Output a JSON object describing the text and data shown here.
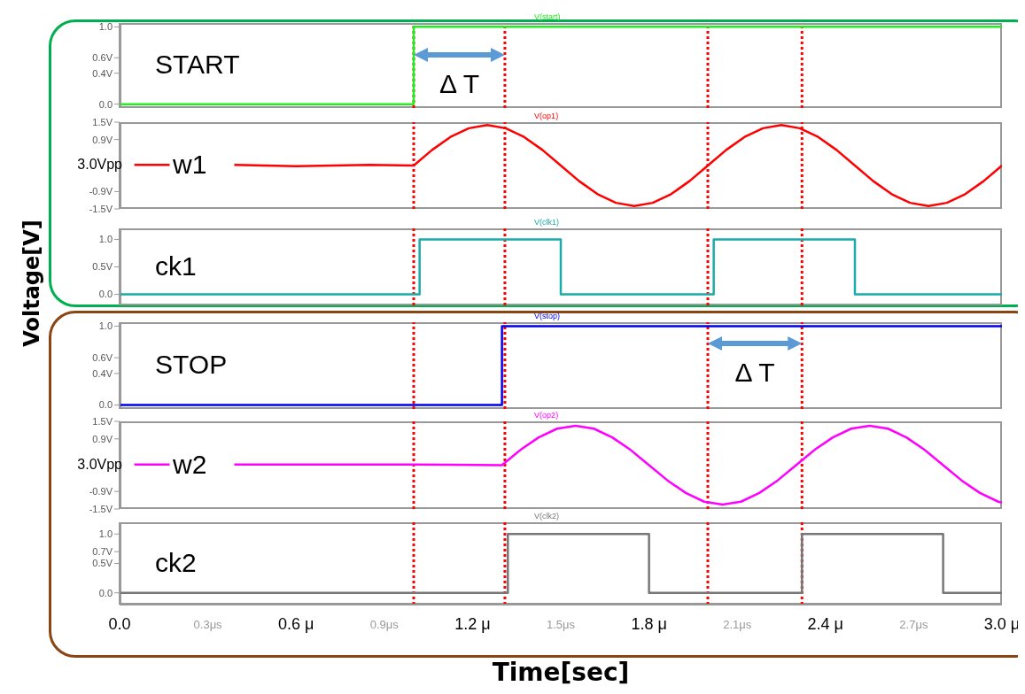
{
  "chart_data": [
    {
      "type": "line",
      "title": "V(start)",
      "xlim": [
        0,
        3.0
      ],
      "ylim": [
        -0.05,
        1.05
      ],
      "yticks": [
        {
          "value": 0,
          "label": "0.0"
        },
        {
          "value": 0.4,
          "label": "0.4V"
        },
        {
          "value": 0.6,
          "label": "0.6V"
        },
        {
          "value": 1.0,
          "label": "1.0"
        }
      ],
      "tick_labels": "y",
      "grid": false,
      "legend": false,
      "marker": "none",
      "series": [
        {
          "name": "START",
          "color": "#22ee22",
          "x": [
            0,
            1.0,
            1.0,
            3.0
          ],
          "values": [
            0,
            0,
            1,
            1
          ]
        }
      ],
      "ref_lines": [
        {
          "axis": "x",
          "value": 1.0,
          "color": "#ff0000",
          "line_style": "dotted"
        },
        {
          "axis": "x",
          "value": 1.31,
          "color": "#ff0000",
          "line_style": "dotted"
        },
        {
          "axis": "x",
          "value": 2.0,
          "color": "#ff0000",
          "line_style": "dotted"
        },
        {
          "axis": "x",
          "value": 2.32,
          "color": "#ff0000",
          "line_style": "dotted"
        }
      ],
      "annotations": [
        "Δ T"
      ]
    },
    {
      "type": "line",
      "title": "V(op1)",
      "ylabel": "3.0Vpp",
      "xlim": [
        0,
        3.0
      ],
      "ylim": [
        -1.5,
        1.5
      ],
      "yticks": [
        {
          "value": -1.5,
          "label": "-1.5V"
        },
        {
          "value": -0.9,
          "label": "-0.9V"
        },
        {
          "value": 0.9,
          "label": "0.9V"
        },
        {
          "value": 1.5,
          "label": "1.5V"
        }
      ],
      "tick_labels": "y",
      "grid": false,
      "legend": false,
      "marker": "none",
      "series": [
        {
          "name": "w1",
          "color": "#ff0000",
          "x": [
            0.05,
            0.17,
            0.2,
            0.39,
            0.6,
            0.85,
            1.0,
            1.0625,
            1.125,
            1.1875,
            1.25,
            1.3125,
            1.375,
            1.4375,
            1.5,
            1.5625,
            1.625,
            1.6875,
            1.75,
            1.8125,
            1.875,
            1.9375,
            2.0,
            2.0625,
            2.125,
            2.1875,
            2.25,
            2.3125,
            2.375,
            2.4375,
            2.5,
            2.5625,
            2.625,
            2.6875,
            2.75,
            2.8125,
            2.875,
            2.9375,
            3.0
          ],
          "values": [
            0.02,
            0.02,
            null,
            0.02,
            -0.02,
            0.02,
            0,
            0.54,
            0.99,
            1.29,
            1.4,
            1.29,
            0.99,
            0.54,
            0,
            -0.54,
            -0.99,
            -1.29,
            -1.4,
            -1.29,
            -0.99,
            -0.54,
            0,
            0.54,
            0.99,
            1.29,
            1.4,
            1.29,
            0.99,
            0.54,
            0,
            -0.54,
            -0.99,
            -1.29,
            -1.4,
            -1.29,
            -0.99,
            -0.54,
            0
          ]
        }
      ],
      "ref_lines": [
        {
          "axis": "x",
          "value": 1.0,
          "color": "#ff0000",
          "line_style": "dotted"
        },
        {
          "axis": "x",
          "value": 1.31,
          "color": "#ff0000",
          "line_style": "dotted"
        },
        {
          "axis": "x",
          "value": 2.0,
          "color": "#ff0000",
          "line_style": "dotted"
        },
        {
          "axis": "x",
          "value": 2.32,
          "color": "#ff0000",
          "line_style": "dotted"
        }
      ]
    },
    {
      "type": "line",
      "title": "V(clk1)",
      "ylabel": "Voltage[V]",
      "xlim": [
        0,
        3.0
      ],
      "ylim": [
        -0.2,
        1.2
      ],
      "yticks": [
        {
          "value": 0,
          "label": "0.0"
        },
        {
          "value": 0.5,
          "label": "0.5V"
        },
        {
          "value": 1.0,
          "label": "1.0"
        }
      ],
      "tick_labels": "y",
      "grid": false,
      "legend": false,
      "marker": "none",
      "series": [
        {
          "name": "ck1",
          "color": "#1aabab",
          "x": [
            0,
            1.02,
            1.02,
            1.5,
            1.5,
            2.02,
            2.02,
            2.5,
            2.5,
            3.0
          ],
          "values": [
            0,
            0,
            1,
            1,
            0,
            0,
            1,
            1,
            0,
            0
          ]
        }
      ],
      "ref_lines": [
        {
          "axis": "x",
          "value": 1.0,
          "color": "#ff0000",
          "line_style": "dotted"
        },
        {
          "axis": "x",
          "value": 1.31,
          "color": "#ff0000",
          "line_style": "dotted"
        },
        {
          "axis": "x",
          "value": 2.0,
          "color": "#ff0000",
          "line_style": "dotted"
        },
        {
          "axis": "x",
          "value": 2.32,
          "color": "#ff0000",
          "line_style": "dotted"
        }
      ]
    },
    {
      "type": "line",
      "title": "V(stop)",
      "xlim": [
        0,
        3.0
      ],
      "ylim": [
        -0.05,
        1.05
      ],
      "yticks": [
        {
          "value": 0,
          "label": "0.0"
        },
        {
          "value": 0.4,
          "label": "0.4V"
        },
        {
          "value": 0.6,
          "label": "0.6V"
        },
        {
          "value": 1.0,
          "label": "1.0"
        }
      ],
      "tick_labels": "y",
      "grid": false,
      "legend": false,
      "marker": "none",
      "series": [
        {
          "name": "STOP",
          "color": "#0000ee",
          "x": [
            0,
            1.3,
            1.3,
            3.0
          ],
          "values": [
            0,
            0,
            1,
            1
          ]
        }
      ],
      "ref_lines": [
        {
          "axis": "x",
          "value": 1.0,
          "color": "#ff0000",
          "line_style": "dotted"
        },
        {
          "axis": "x",
          "value": 1.31,
          "color": "#ff0000",
          "line_style": "dotted"
        },
        {
          "axis": "x",
          "value": 2.0,
          "color": "#ff0000",
          "line_style": "dotted"
        },
        {
          "axis": "x",
          "value": 2.32,
          "color": "#ff0000",
          "line_style": "dotted"
        }
      ],
      "annotations": [
        "Δ T"
      ]
    },
    {
      "type": "line",
      "title": "V(op2)",
      "ylabel": "3.0Vpp",
      "xlim": [
        0,
        3.0
      ],
      "ylim": [
        -1.5,
        1.5
      ],
      "yticks": [
        {
          "value": -1.5,
          "label": "-1.5V"
        },
        {
          "value": -0.9,
          "label": "-0.9V"
        },
        {
          "value": 0.9,
          "label": "0.9V"
        },
        {
          "value": 1.5,
          "label": "1.5V"
        }
      ],
      "tick_labels": "y",
      "grid": false,
      "legend": false,
      "marker": "none",
      "series": [
        {
          "name": "w2",
          "color": "#ff00ff",
          "x": [
            0.05,
            0.17,
            0.2,
            0.39,
            0.7,
            1.0,
            1.3,
            1.3625,
            1.425,
            1.4875,
            1.55,
            1.6125,
            1.675,
            1.7375,
            1.8,
            1.8625,
            1.925,
            1.9875,
            2.05,
            2.1125,
            2.175,
            2.2375,
            2.3,
            2.3625,
            2.425,
            2.4875,
            2.55,
            2.6125,
            2.675,
            2.7375,
            2.8,
            2.8625,
            2.925,
            2.9875,
            3.0
          ],
          "values": [
            0.02,
            0.02,
            null,
            0.02,
            0.02,
            0.02,
            0,
            0.52,
            0.95,
            1.25,
            1.35,
            1.25,
            0.95,
            0.52,
            0,
            -0.52,
            -0.95,
            -1.25,
            -1.35,
            -1.25,
            -0.95,
            -0.52,
            0,
            0.52,
            0.95,
            1.25,
            1.35,
            1.25,
            0.95,
            0.52,
            0,
            -0.52,
            -0.95,
            -1.25,
            -1.28
          ]
        }
      ],
      "ref_lines": [
        {
          "axis": "x",
          "value": 1.0,
          "color": "#ff0000",
          "line_style": "dotted"
        },
        {
          "axis": "x",
          "value": 1.31,
          "color": "#ff0000",
          "line_style": "dotted"
        },
        {
          "axis": "x",
          "value": 2.0,
          "color": "#ff0000",
          "line_style": "dotted"
        },
        {
          "axis": "x",
          "value": 2.32,
          "color": "#ff0000",
          "line_style": "dotted"
        }
      ]
    },
    {
      "type": "line",
      "title": "V(clk2)",
      "xlabel": "Time[sec]",
      "xlim": [
        0,
        3.0
      ],
      "xticks": [
        {
          "value": 0,
          "label": "0.0"
        },
        {
          "value": 0.3,
          "label": "0.3μs"
        },
        {
          "value": 0.6,
          "label": "0.6 μ"
        },
        {
          "value": 0.9,
          "label": "0.9μs"
        },
        {
          "value": 1.2,
          "label": "1.2 μ"
        },
        {
          "value": 1.5,
          "label": "1.5μs"
        },
        {
          "value": 1.8,
          "label": "1.8 μ"
        },
        {
          "value": 2.1,
          "label": "2.1μs"
        },
        {
          "value": 2.4,
          "label": "2.4 μ"
        },
        {
          "value": 2.7,
          "label": "2.7μs"
        },
        {
          "value": 3.0,
          "label": "3.0 μ"
        }
      ],
      "ylim": [
        -0.2,
        1.2
      ],
      "yticks": [
        {
          "value": 0,
          "label": "0.0"
        },
        {
          "value": 0.5,
          "label": "0.5V"
        },
        {
          "value": 0.7,
          "label": "0.7V"
        },
        {
          "value": 1.0,
          "label": "1.0"
        }
      ],
      "grid": false,
      "legend": false,
      "marker": "none",
      "series": [
        {
          "name": "ck2",
          "color": "#777777",
          "x": [
            0,
            1.32,
            1.32,
            1.8,
            1.8,
            2.32,
            2.32,
            2.8,
            2.8,
            3.0
          ],
          "values": [
            0,
            0,
            1,
            1,
            0,
            0,
            1,
            1,
            0,
            0
          ]
        }
      ],
      "ref_lines": [
        {
          "axis": "x",
          "value": 1.0,
          "color": "#ff0000",
          "line_style": "dotted"
        },
        {
          "axis": "x",
          "value": 1.31,
          "color": "#ff0000",
          "line_style": "dotted"
        },
        {
          "axis": "x",
          "value": 2.0,
          "color": "#ff0000",
          "line_style": "dotted"
        },
        {
          "axis": "x",
          "value": 2.32,
          "color": "#ff0000",
          "line_style": "dotted"
        }
      ]
    }
  ]
}
